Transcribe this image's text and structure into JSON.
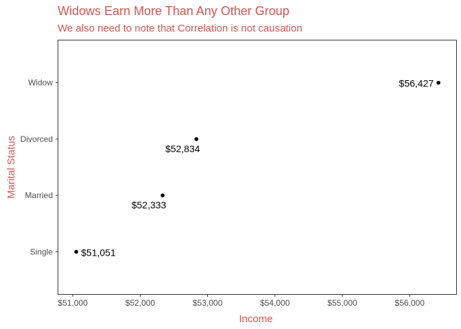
{
  "chart_data": {
    "type": "scatter",
    "title": "Widows Earn More Than Any Other Group",
    "subtitle": "We also need to note that Correlation is not causation",
    "xlabel": "Income",
    "ylabel": "Marital Status",
    "xlim": [
      50785,
      56690
    ],
    "x_ticks": [
      51000,
      52000,
      53000,
      54000,
      55000,
      56000
    ],
    "x_tick_labels": [
      "$51,000",
      "$52,000",
      "$53,000",
      "$54,000",
      "$55,000",
      "$56,000"
    ],
    "categories": [
      "Single",
      "Married",
      "Divorced",
      "Widow"
    ],
    "points": [
      {
        "category": "Single",
        "x": 51051,
        "label": "$51,051",
        "label_side": "right"
      },
      {
        "category": "Married",
        "x": 52333,
        "label": "$52,333",
        "label_side": "below-left"
      },
      {
        "category": "Divorced",
        "x": 52834,
        "label": "$52,834",
        "label_side": "below-left"
      },
      {
        "category": "Widow",
        "x": 56427,
        "label": "$56,427",
        "label_side": "left"
      }
    ],
    "grid": false,
    "legend": "none",
    "colors": {
      "title": "#d9534f",
      "axis_title": "#d9534f",
      "point": "#000000",
      "frame": "#333333"
    }
  }
}
